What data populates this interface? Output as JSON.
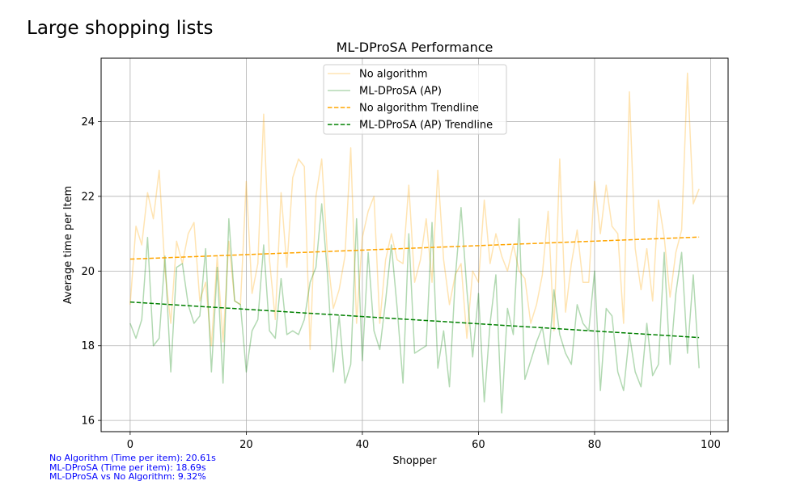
{
  "figure": {
    "suptitle": "Large shopping lists"
  },
  "stats": {
    "line1": "No Algorithm (Time per item): 20.61s",
    "line2": "ML-DProSA (Time per item): 18.69s",
    "line3": "ML-DProSA vs No Algorithm: 9.32%"
  },
  "chart_data": {
    "type": "line",
    "title": "ML-DProSA Performance",
    "xlabel": "Shopper",
    "ylabel": "Average time per Item",
    "xlim": [
      -5,
      103
    ],
    "ylim": [
      15.7,
      25.7
    ],
    "xticks": [
      0,
      20,
      40,
      60,
      80,
      100
    ],
    "yticks": [
      16,
      18,
      20,
      22,
      24
    ],
    "grid": true,
    "legend_position": "upper center",
    "x": [
      0,
      1,
      2,
      3,
      4,
      5,
      6,
      7,
      8,
      9,
      10,
      11,
      12,
      13,
      14,
      15,
      16,
      17,
      18,
      19,
      20,
      21,
      22,
      23,
      24,
      25,
      26,
      27,
      28,
      29,
      30,
      31,
      32,
      33,
      34,
      35,
      36,
      37,
      38,
      39,
      40,
      41,
      42,
      43,
      44,
      45,
      46,
      47,
      48,
      49,
      50,
      51,
      52,
      53,
      54,
      55,
      56,
      57,
      58,
      59,
      60,
      61,
      62,
      63,
      64,
      65,
      66,
      67,
      68,
      69,
      70,
      71,
      72,
      73,
      74,
      75,
      76,
      77,
      78,
      79,
      80,
      81,
      82,
      83,
      84,
      85,
      86,
      87,
      88,
      89,
      90,
      91,
      92,
      93,
      94,
      95,
      96,
      97,
      98
    ],
    "series": [
      {
        "name": "No algorithm",
        "style": "solid",
        "color": "#ffa500",
        "alpha": 0.3,
        "values": [
          19.1,
          21.2,
          20.7,
          22.1,
          21.4,
          22.7,
          20.0,
          18.6,
          20.8,
          20.2,
          21.0,
          21.3,
          19.2,
          19.7,
          18.0,
          20.4,
          18.1,
          20.8,
          19.2,
          19.1,
          22.4,
          19.4,
          20.2,
          24.2,
          20.3,
          18.7,
          22.1,
          20.1,
          22.5,
          23.0,
          22.8,
          17.9,
          22.0,
          23.0,
          20.4,
          19.0,
          19.5,
          20.4,
          23.3,
          18.6,
          20.9,
          21.6,
          22.0,
          18.6,
          20.3,
          21.0,
          20.3,
          20.2,
          22.3,
          19.7,
          20.3,
          21.4,
          19.7,
          22.7,
          20.3,
          19.1,
          19.9,
          20.2,
          18.2,
          20.0,
          19.7,
          21.9,
          20.2,
          21.0,
          20.4,
          20.0,
          20.7,
          20.0,
          19.8,
          18.6,
          19.1,
          19.9,
          21.6,
          18.4,
          23.0,
          18.9,
          20.2,
          21.1,
          19.7,
          19.7,
          22.4,
          21.0,
          22.3,
          21.2,
          21.0,
          18.6,
          24.8,
          20.6,
          19.5,
          20.6,
          19.2,
          21.9,
          20.9,
          19.3,
          20.5,
          21.1,
          25.3,
          21.8,
          22.2
        ]
      },
      {
        "name": "ML-DProSA (AP)",
        "style": "solid",
        "color": "#008000",
        "alpha": 0.3,
        "values": [
          18.6,
          18.2,
          18.7,
          20.9,
          18.0,
          18.2,
          20.4,
          17.3,
          20.1,
          20.2,
          19.1,
          18.6,
          18.8,
          20.6,
          17.3,
          20.1,
          17.0,
          21.4,
          19.2,
          19.1,
          17.3,
          18.4,
          18.7,
          20.7,
          18.4,
          18.2,
          19.8,
          18.3,
          18.4,
          18.3,
          18.7,
          19.7,
          20.1,
          21.8,
          19.9,
          17.3,
          18.8,
          17.0,
          17.5,
          21.4,
          17.6,
          20.5,
          18.4,
          17.9,
          19.2,
          20.7,
          19.0,
          17.0,
          21.0,
          17.8,
          17.9,
          18.0,
          21.3,
          17.4,
          18.4,
          16.9,
          19.8,
          21.7,
          19.5,
          17.7,
          19.4,
          16.5,
          18.6,
          19.9,
          16.2,
          19.0,
          18.3,
          21.4,
          17.1,
          17.6,
          18.1,
          18.5,
          17.5,
          19.5,
          18.3,
          17.8,
          17.5,
          19.1,
          18.6,
          18.4,
          20.0,
          16.8,
          19.0,
          18.8,
          17.3,
          16.8,
          18.3,
          17.3,
          16.9,
          18.6,
          17.2,
          17.5,
          20.5,
          17.5,
          19.4,
          20.5,
          17.8,
          19.9,
          17.4
        ]
      },
      {
        "name": "No algorithm Trendline",
        "style": "dashed",
        "color": "#ffa500",
        "alpha": 1,
        "values_endpoints": [
          20.32,
          20.91
        ]
      },
      {
        "name": "ML-DProSA (AP) Trendline",
        "style": "dashed",
        "color": "#008000",
        "alpha": 1,
        "values_endpoints": [
          19.17,
          18.22
        ]
      }
    ]
  }
}
